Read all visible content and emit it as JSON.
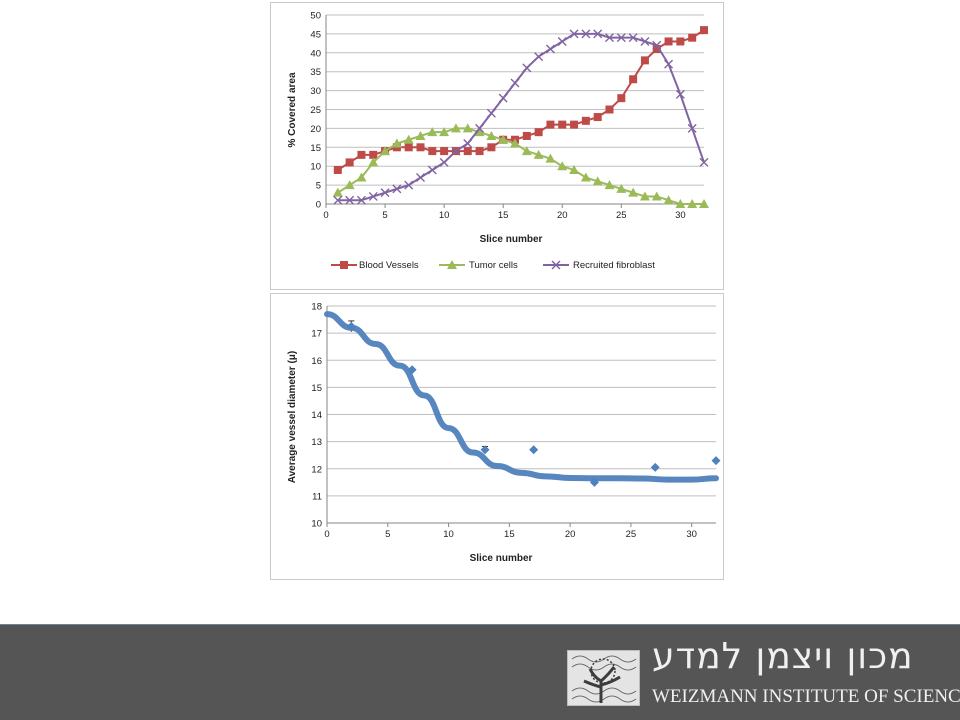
{
  "chart_data": [
    {
      "type": "line",
      "xlabel": "Slice number",
      "ylabel": "% Covered area",
      "xlim": [
        0,
        32
      ],
      "ylim": [
        0,
        50
      ],
      "xticks": [
        0,
        5,
        10,
        15,
        20,
        25,
        30
      ],
      "yticks": [
        0,
        5,
        10,
        15,
        20,
        25,
        30,
        35,
        40,
        45,
        50
      ],
      "grid": "horizontal",
      "legend": "bottom",
      "x": [
        1,
        2,
        3,
        4,
        5,
        6,
        7,
        8,
        9,
        10,
        11,
        12,
        13,
        14,
        15,
        16,
        17,
        18,
        19,
        20,
        21,
        22,
        23,
        24,
        25,
        26,
        27,
        28,
        29,
        30,
        31,
        32
      ],
      "series": [
        {
          "name": "Blood Vessels",
          "color": "#be4b48",
          "marker": "square",
          "values": [
            9,
            11,
            13,
            13,
            14,
            15,
            15,
            15,
            14,
            14,
            14,
            14,
            14,
            15,
            17,
            17,
            18,
            19,
            21,
            21,
            21,
            22,
            23,
            25,
            28,
            33,
            38,
            41,
            43,
            43,
            44,
            46
          ]
        },
        {
          "name": "Tumor cells",
          "color": "#9bbb59",
          "marker": "triangle",
          "values": [
            3,
            5,
            7,
            11,
            14,
            16,
            17,
            18,
            19,
            19,
            20,
            20,
            19,
            18,
            17,
            16,
            14,
            13,
            12,
            10,
            9,
            7,
            6,
            5,
            4,
            3,
            2,
            2,
            1,
            0,
            0,
            0
          ]
        },
        {
          "name": "Recruited fibroblast",
          "color": "#8064a2",
          "marker": "x",
          "values": [
            1,
            1,
            1,
            2,
            3,
            4,
            5,
            7,
            9,
            11,
            14,
            16,
            20,
            24,
            28,
            32,
            36,
            39,
            41,
            43,
            45,
            45,
            45,
            44,
            44,
            44,
            43,
            42,
            37,
            29,
            20,
            11
          ]
        }
      ]
    },
    {
      "type": "scatter",
      "xlabel": "Slice number",
      "ylabel": "Average vessel diameter (μ)",
      "xlim": [
        0,
        32
      ],
      "ylim": [
        10,
        18
      ],
      "xticks": [
        0,
        5,
        10,
        15,
        20,
        25,
        30
      ],
      "yticks": [
        10,
        11,
        12,
        13,
        14,
        15,
        16,
        17,
        18
      ],
      "grid": "horizontal",
      "points": {
        "color": "#4f81bd",
        "x": [
          2,
          7,
          13,
          17,
          22,
          27,
          32
        ],
        "y": [
          17.25,
          15.65,
          12.7,
          12.7,
          11.5,
          12.05,
          12.3
        ],
        "error": [
          0.2,
          0,
          0.12,
          0,
          0,
          0,
          0
        ]
      },
      "trendline": {
        "color": "#4f81bd",
        "x": [
          0,
          2,
          4,
          6,
          8,
          10,
          12,
          14,
          16,
          18,
          20,
          22,
          24,
          26,
          28,
          30,
          32
        ],
        "y": [
          17.7,
          17.2,
          16.6,
          15.8,
          14.7,
          13.5,
          12.6,
          12.1,
          11.85,
          11.72,
          11.66,
          11.65,
          11.65,
          11.64,
          11.6,
          11.6,
          11.65
        ]
      }
    }
  ],
  "footer": {
    "hebrew_name": "מכון ויצמן למדע",
    "english_name": "WEIZMANN INSTITUTE OF SCIENCE",
    "background": "#555556"
  }
}
